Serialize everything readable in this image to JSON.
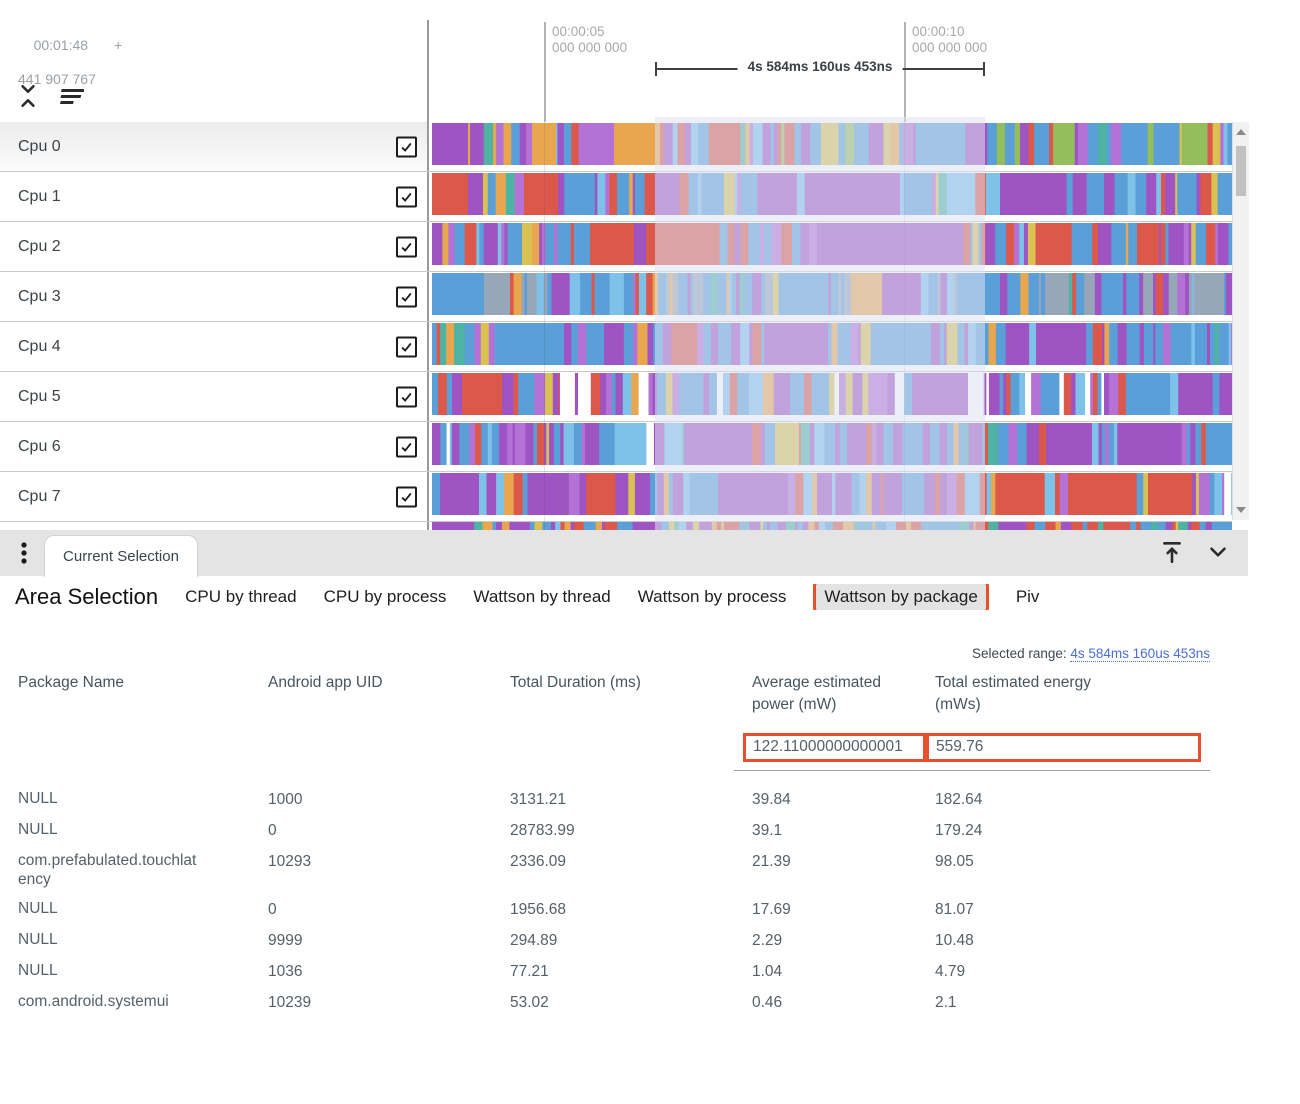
{
  "timeline": {
    "origin_time": "00:01:48",
    "origin_plus": "+",
    "origin_offset": "441 907 767",
    "ticks": [
      {
        "time": "00:00:05",
        "subsecond": "000 000 000"
      },
      {
        "time": "00:00:10",
        "subsecond": "000 000 000"
      }
    ],
    "span_label": "4s 584ms 160us 453ns"
  },
  "icons": {
    "collapse_tracks": "unfold-less",
    "track_sort": "filter-list",
    "panel_menu": "kebab-vertical",
    "dock_to_top": "vertical-align-top",
    "collapse_panel": "chevron-down",
    "scroll_up": "triangle-up",
    "scroll_down": "triangle-down",
    "checkbox": "checkmark"
  },
  "tracks": [
    {
      "name": "Cpu 0",
      "checked": true,
      "seed": 1,
      "mix": [
        [
          "blue",
          24
        ],
        [
          "lightblue",
          9
        ],
        [
          "purple",
          20
        ],
        [
          "magenta",
          8
        ],
        [
          "teal",
          7
        ],
        [
          "orange",
          9
        ],
        [
          "red",
          6
        ],
        [
          "yellow",
          4
        ],
        [
          "green",
          4
        ]
      ],
      "blocks": [
        [
          100,
          24,
          "orange"
        ],
        [
          182,
          46,
          "orange"
        ]
      ]
    },
    {
      "name": "Cpu 1",
      "checked": true,
      "seed": 2,
      "mix": [
        [
          "red",
          18
        ],
        [
          "blue",
          32
        ],
        [
          "lightblue",
          8
        ],
        [
          "purple",
          20
        ],
        [
          "magenta",
          6
        ],
        [
          "orange",
          4
        ],
        [
          "teal",
          2
        ],
        [
          "yellow",
          2
        ]
      ],
      "blocks": [
        [
          0,
          36,
          "red"
        ],
        [
          92,
          34,
          "red"
        ],
        [
          382,
          86,
          "purple"
        ],
        [
          568,
          60,
          "purple"
        ]
      ]
    },
    {
      "name": "Cpu 2",
      "checked": true,
      "seed": 3,
      "mix": [
        [
          "blue",
          26
        ],
        [
          "red",
          24
        ],
        [
          "purple",
          22
        ],
        [
          "magenta",
          8
        ],
        [
          "lightblue",
          6
        ],
        [
          "orange",
          5
        ],
        [
          "yellow",
          3
        ]
      ],
      "blocks": [
        [
          158,
          44,
          "red"
        ],
        [
          214,
          56,
          "red"
        ],
        [
          430,
          96,
          "purple"
        ]
      ]
    },
    {
      "name": "Cpu 3",
      "checked": true,
      "seed": 4,
      "mix": [
        [
          "blue",
          34
        ],
        [
          "lightblue",
          8
        ],
        [
          "purple",
          16
        ],
        [
          "magenta",
          5
        ],
        [
          "gray",
          12
        ],
        [
          "red",
          8
        ],
        [
          "teal",
          4
        ],
        [
          "orange",
          4
        ],
        [
          "yellow",
          3
        ]
      ],
      "blocks": [
        [
          52,
          26,
          "gray"
        ],
        [
          762,
          30,
          "gray"
        ]
      ]
    },
    {
      "name": "Cpu 4",
      "checked": true,
      "seed": 5,
      "mix": [
        [
          "blue",
          38
        ],
        [
          "lightblue",
          9
        ],
        [
          "purple",
          24
        ],
        [
          "magenta",
          8
        ],
        [
          "red",
          5
        ],
        [
          "orange",
          4
        ],
        [
          "teal",
          4
        ],
        [
          "yellow",
          2
        ]
      ],
      "blocks": [
        [
          332,
          64,
          "purple"
        ],
        [
          604,
          44,
          "purple"
        ]
      ]
    },
    {
      "name": "Cpu 5",
      "checked": true,
      "seed": 6,
      "mix": [
        [
          "blue",
          24
        ],
        [
          "lightblue",
          7
        ],
        [
          "purple",
          26
        ],
        [
          "magenta",
          8
        ],
        [
          "red",
          10
        ],
        [
          "white",
          8
        ],
        [
          "orange",
          4
        ],
        [
          "yellow",
          4
        ]
      ],
      "blocks": [
        [
          30,
          40,
          "red"
        ],
        [
          128,
          10,
          "white"
        ],
        [
          146,
          8,
          "white"
        ],
        [
          480,
          56,
          "purple"
        ]
      ]
    },
    {
      "name": "Cpu 6",
      "checked": true,
      "seed": 7,
      "mix": [
        [
          "purple",
          30
        ],
        [
          "magenta",
          10
        ],
        [
          "blue",
          26
        ],
        [
          "lightblue",
          7
        ],
        [
          "red",
          8
        ],
        [
          "teal",
          4
        ],
        [
          "orange",
          4
        ],
        [
          "white",
          4
        ],
        [
          "yellow",
          2
        ]
      ],
      "blocks": [
        [
          252,
          62,
          "purple"
        ],
        [
          614,
          46,
          "purple"
        ]
      ]
    },
    {
      "name": "Cpu 7",
      "checked": true,
      "seed": 8,
      "mix": [
        [
          "purple",
          28
        ],
        [
          "magenta",
          10
        ],
        [
          "blue",
          22
        ],
        [
          "lightblue",
          7
        ],
        [
          "red",
          14
        ],
        [
          "white",
          5
        ],
        [
          "orange",
          4
        ],
        [
          "yellow",
          4
        ]
      ],
      "blocks": [
        [
          286,
          70,
          "purple"
        ],
        [
          636,
          62,
          "red"
        ],
        [
          716,
          44,
          "red"
        ]
      ]
    }
  ],
  "partial_track": {
    "seed": 9,
    "mix": [
      [
        "red",
        28
      ],
      [
        "blue",
        24
      ],
      [
        "purple",
        22
      ],
      [
        "orange",
        9
      ],
      [
        "teal",
        8
      ],
      [
        "yellow",
        5
      ],
      [
        "lightblue",
        4
      ]
    ]
  },
  "selection_bar": {
    "tab_label": "Current Selection"
  },
  "selection_panel": {
    "title": "Area Selection",
    "tabs": [
      "CPU by thread",
      "CPU by process",
      "Wattson by thread",
      "Wattson by process",
      "Wattson by package",
      "Piv"
    ],
    "active_tab": "Wattson by package",
    "selected_range_label": "Selected range:",
    "selected_range_value": "4s 584ms 160us 453ns"
  },
  "table": {
    "columns": [
      "Package Name",
      "Android app UID",
      "Total Duration (ms)",
      "Average estimated power (mW)",
      "Total estimated energy (mWs)"
    ],
    "summary": {
      "average_power": "122.11000000000001",
      "total_energy": "559.76"
    },
    "rows": [
      [
        "NULL",
        "1000",
        "3131.21",
        "39.84",
        "182.64"
      ],
      [
        "NULL",
        "0",
        "28783.99",
        "39.1",
        "179.24"
      ],
      [
        "com.prefabulated.touchlatency",
        "10293",
        "2336.09",
        "21.39",
        "98.05"
      ],
      [
        "NULL",
        "0",
        "1956.68",
        "17.69",
        "81.07"
      ],
      [
        "NULL",
        "9999",
        "294.89",
        "2.29",
        "10.48"
      ],
      [
        "NULL",
        "1036",
        "77.21",
        "1.04",
        "4.79"
      ],
      [
        "com.android.systemui",
        "10239",
        "53.02",
        "0.46",
        "2.1"
      ]
    ]
  },
  "colors": {
    "highlight_orange": "#e5512d",
    "link_blue": "#4a6fd3",
    "palette": {
      "blue": "#5b9fd8",
      "lightblue": "#7ec2ea",
      "purple": "#9f54c4",
      "magenta": "#b472d6",
      "red": "#dc584a",
      "orange": "#e8a74e",
      "yellow": "#d9c252",
      "teal": "#4fb3a4",
      "green": "#94bd5c",
      "gray": "#97a6b8",
      "white": "#ffffff"
    }
  }
}
